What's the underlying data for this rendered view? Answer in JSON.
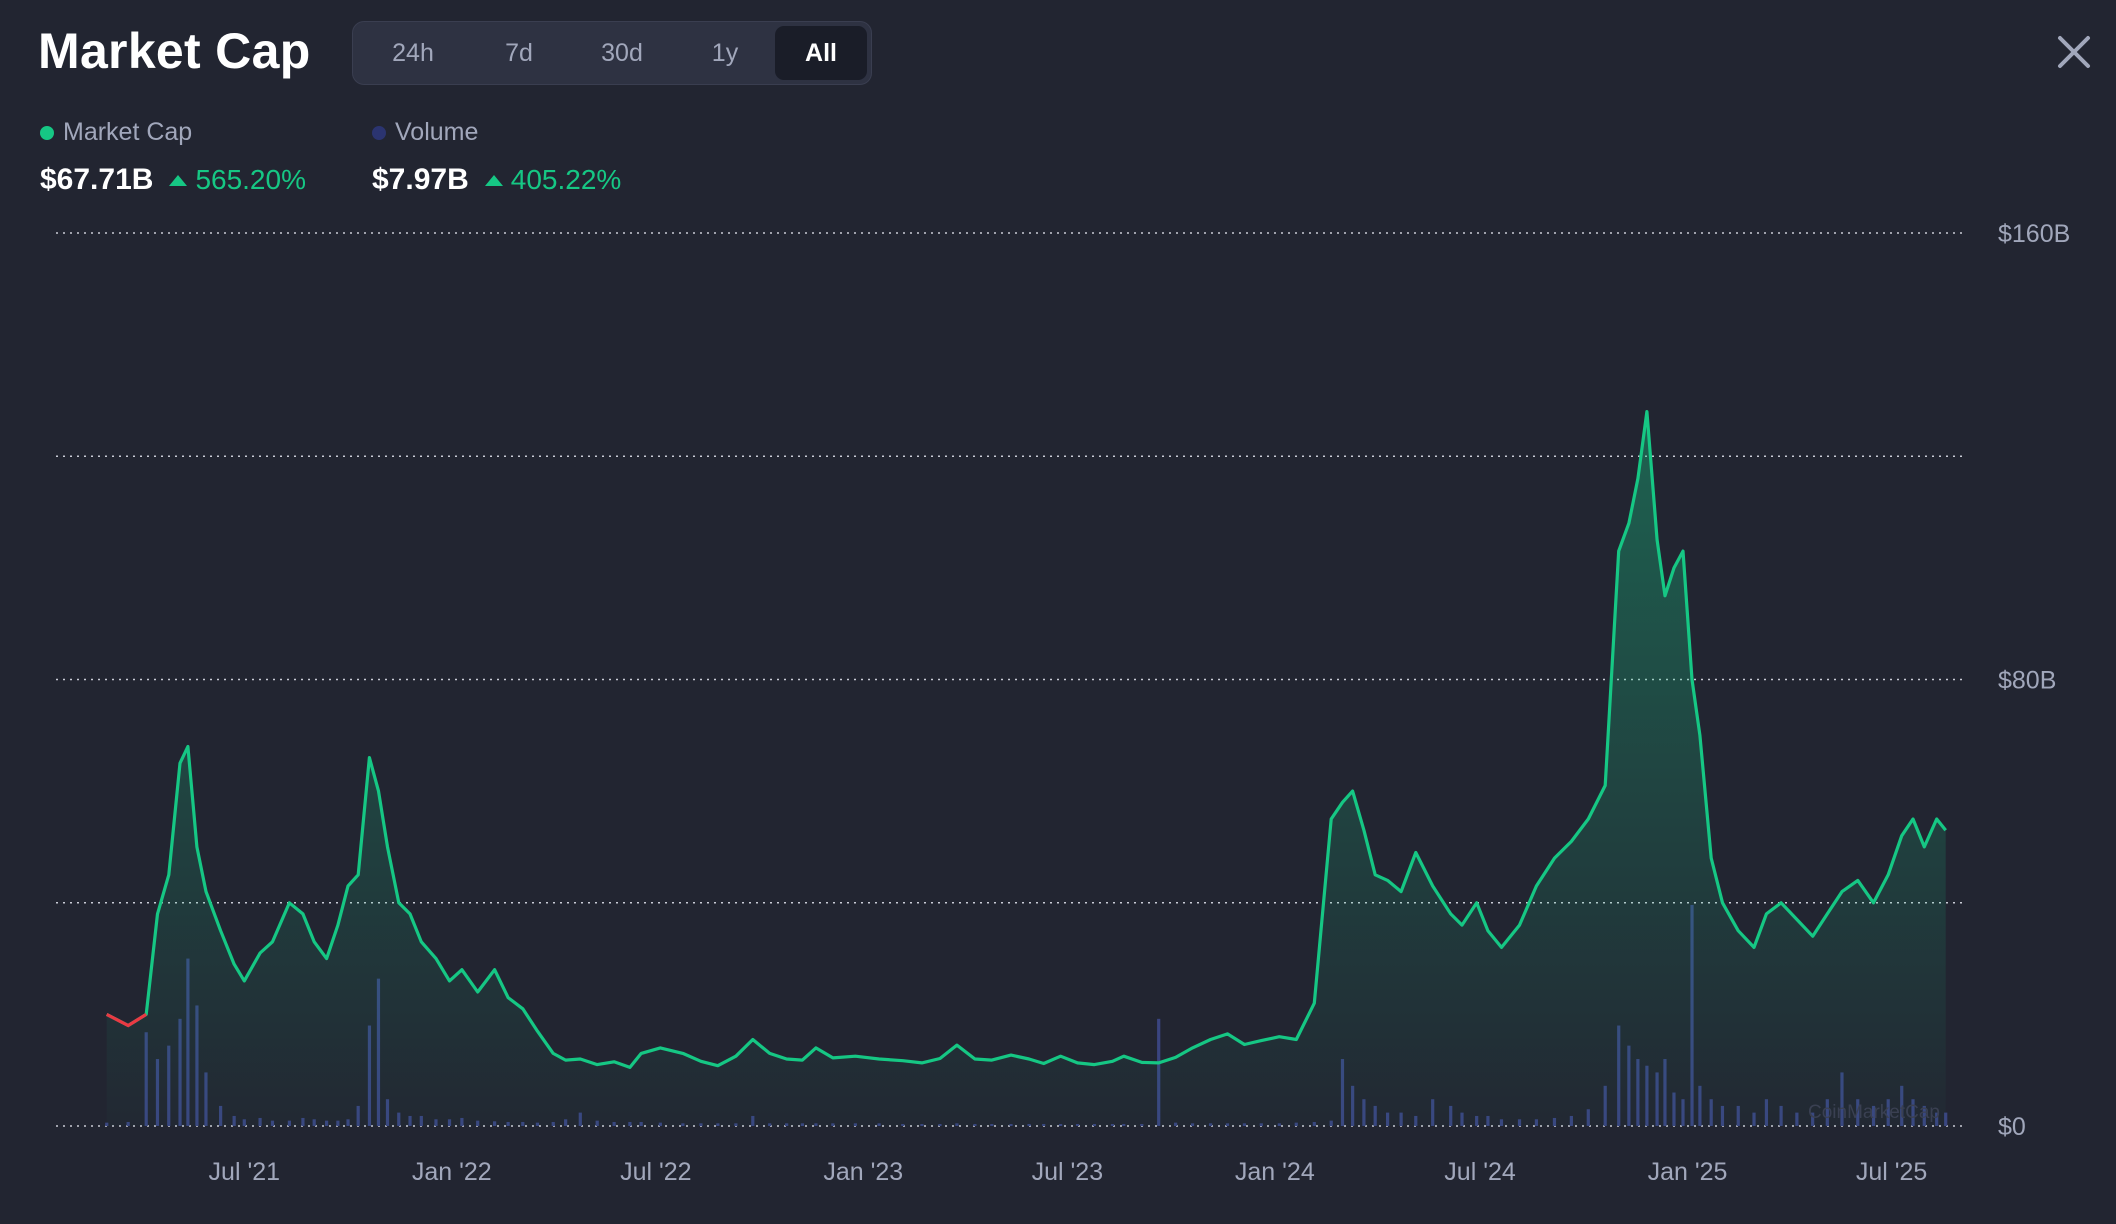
{
  "header": {
    "title": "Market Cap",
    "tabs": [
      {
        "label": "24h",
        "active": false
      },
      {
        "label": "7d",
        "active": false
      },
      {
        "label": "30d",
        "active": false
      },
      {
        "label": "1y",
        "active": false
      },
      {
        "label": "All",
        "active": true
      }
    ],
    "close_icon": "close-icon"
  },
  "legend": {
    "market_cap": {
      "label": "Market Cap",
      "value": "$67.71B",
      "change": "565.20%",
      "color": "#16c784"
    },
    "volume": {
      "label": "Volume",
      "value": "$7.97B",
      "change": "405.22%",
      "color": "#2b3470"
    }
  },
  "colors": {
    "background": "#222531",
    "line": "#16c784",
    "line_down": "#ea3943",
    "grid": "#c9ccd6",
    "volume": "#3a4580",
    "axis_text": "#a1a7bb"
  },
  "watermark": "CoinMarketCap",
  "chart_data": {
    "type": "line",
    "series": [
      {
        "name": "Market Cap",
        "x": [
          "2021-03-01",
          "2021-03-20",
          "2021-04-05",
          "2021-04-15",
          "2021-04-25",
          "2021-05-05",
          "2021-05-12",
          "2021-05-20",
          "2021-05-28",
          "2021-06-10",
          "2021-06-22",
          "2021-07-01",
          "2021-07-15",
          "2021-07-26",
          "2021-08-10",
          "2021-08-22",
          "2021-09-01",
          "2021-09-12",
          "2021-09-22",
          "2021-10-01",
          "2021-10-10",
          "2021-10-20",
          "2021-10-28",
          "2021-11-05",
          "2021-11-15",
          "2021-11-25",
          "2021-12-05",
          "2021-12-18",
          "2021-12-30",
          "2022-01-10",
          "2022-01-24",
          "2022-02-08",
          "2022-02-20",
          "2022-03-05",
          "2022-03-18",
          "2022-04-01",
          "2022-04-12",
          "2022-04-25",
          "2022-05-10",
          "2022-05-25",
          "2022-06-08",
          "2022-06-18",
          "2022-07-05",
          "2022-07-25",
          "2022-08-10",
          "2022-08-25",
          "2022-09-10",
          "2022-09-25",
          "2022-10-10",
          "2022-10-25",
          "2022-11-08",
          "2022-11-20",
          "2022-12-05",
          "2022-12-25",
          "2023-01-15",
          "2023-02-05",
          "2023-02-22",
          "2023-03-10",
          "2023-03-25",
          "2023-04-10",
          "2023-04-25",
          "2023-05-12",
          "2023-05-28",
          "2023-06-10",
          "2023-06-25",
          "2023-07-10",
          "2023-07-25",
          "2023-08-10",
          "2023-08-20",
          "2023-09-05",
          "2023-09-20",
          "2023-10-05",
          "2023-10-20",
          "2023-11-05",
          "2023-11-20",
          "2023-12-05",
          "2023-12-20",
          "2024-01-05",
          "2024-01-20",
          "2024-02-05",
          "2024-02-20",
          "2024-03-01",
          "2024-03-10",
          "2024-03-20",
          "2024-03-30",
          "2024-04-10",
          "2024-04-22",
          "2024-05-05",
          "2024-05-20",
          "2024-06-05",
          "2024-06-15",
          "2024-06-28",
          "2024-07-08",
          "2024-07-20",
          "2024-08-05",
          "2024-08-20",
          "2024-09-05",
          "2024-09-20",
          "2024-10-05",
          "2024-10-20",
          "2024-11-01",
          "2024-11-10",
          "2024-11-18",
          "2024-11-26",
          "2024-12-05",
          "2024-12-12",
          "2024-12-20",
          "2024-12-28",
          "2025-01-05",
          "2025-01-12",
          "2025-01-22",
          "2025-02-01",
          "2025-02-15",
          "2025-03-01",
          "2025-03-12",
          "2025-03-25",
          "2025-04-08",
          "2025-04-22",
          "2025-05-05",
          "2025-05-18",
          "2025-06-01",
          "2025-06-15",
          "2025-06-28",
          "2025-07-10",
          "2025-07-20",
          "2025-07-30",
          "2025-08-10",
          "2025-08-18"
        ],
        "values": [
          20,
          18,
          20,
          38,
          45,
          65,
          68,
          50,
          42,
          35,
          29,
          26,
          31,
          33,
          40,
          38,
          33,
          30,
          36,
          43,
          45,
          66,
          60,
          50,
          40,
          38,
          33,
          30,
          26,
          28,
          24,
          28,
          23,
          21,
          17,
          13,
          11.8,
          12,
          11,
          11.5,
          10.5,
          13,
          14,
          13,
          11.6,
          10.8,
          12.5,
          15.5,
          13,
          12,
          11.8,
          14,
          12.2,
          12.5,
          12,
          11.7,
          11.3,
          12.1,
          14.5,
          12,
          11.8,
          12.7,
          12,
          11.2,
          12.5,
          11.3,
          11,
          11.6,
          12.5,
          11.4,
          11.3,
          12.3,
          14,
          15.5,
          16.5,
          14.6,
          15.3,
          16,
          15.5,
          22,
          55,
          58,
          60,
          53,
          45,
          44,
          42,
          49,
          43,
          38,
          36,
          40,
          35,
          32,
          36,
          43,
          48,
          51,
          55,
          61,
          103,
          108,
          116,
          128,
          105,
          95,
          100,
          103,
          80,
          70,
          48,
          40,
          35,
          32,
          38,
          40,
          37,
          34,
          38,
          42,
          44,
          40,
          45,
          52,
          55,
          50,
          55,
          53
        ]
      },
      {
        "name": "Volume",
        "x": [
          "2021-03-01",
          "2021-03-20",
          "2021-04-05",
          "2021-04-15",
          "2021-04-25",
          "2021-05-05",
          "2021-05-12",
          "2021-05-20",
          "2021-05-28",
          "2021-06-10",
          "2021-06-22",
          "2021-07-01",
          "2021-07-15",
          "2021-07-26",
          "2021-08-10",
          "2021-08-22",
          "2021-09-01",
          "2021-09-12",
          "2021-09-22",
          "2021-10-01",
          "2021-10-10",
          "2021-10-20",
          "2021-10-28",
          "2021-11-05",
          "2021-11-15",
          "2021-11-25",
          "2021-12-05",
          "2021-12-18",
          "2021-12-30",
          "2022-01-10",
          "2022-01-24",
          "2022-02-08",
          "2022-02-20",
          "2022-03-05",
          "2022-03-18",
          "2022-04-01",
          "2022-04-12",
          "2022-04-25",
          "2022-05-10",
          "2022-05-25",
          "2022-06-08",
          "2022-06-18",
          "2022-07-05",
          "2022-07-25",
          "2022-08-10",
          "2022-08-25",
          "2022-09-10",
          "2022-09-25",
          "2022-10-10",
          "2022-10-25",
          "2022-11-08",
          "2022-11-20",
          "2022-12-05",
          "2022-12-25",
          "2023-01-15",
          "2023-02-05",
          "2023-02-22",
          "2023-03-10",
          "2023-03-25",
          "2023-04-10",
          "2023-04-25",
          "2023-05-12",
          "2023-05-28",
          "2023-06-10",
          "2023-06-25",
          "2023-07-10",
          "2023-07-25",
          "2023-08-10",
          "2023-08-20",
          "2023-09-05",
          "2023-09-20",
          "2023-10-05",
          "2023-10-20",
          "2023-11-05",
          "2023-11-20",
          "2023-12-05",
          "2023-12-20",
          "2024-01-05",
          "2024-01-20",
          "2024-02-05",
          "2024-02-20",
          "2024-03-01",
          "2024-03-10",
          "2024-03-20",
          "2024-03-30",
          "2024-04-10",
          "2024-04-22",
          "2024-05-05",
          "2024-05-20",
          "2024-06-05",
          "2024-06-15",
          "2024-06-28",
          "2024-07-08",
          "2024-07-20",
          "2024-08-05",
          "2024-08-20",
          "2024-09-05",
          "2024-09-20",
          "2024-10-05",
          "2024-10-20",
          "2024-11-01",
          "2024-11-10",
          "2024-11-18",
          "2024-11-26",
          "2024-12-05",
          "2024-12-12",
          "2024-12-20",
          "2024-12-28",
          "2025-01-05",
          "2025-01-12",
          "2025-01-22",
          "2025-02-01",
          "2025-02-15",
          "2025-03-01",
          "2025-03-12",
          "2025-03-25",
          "2025-04-08",
          "2025-04-22",
          "2025-05-05",
          "2025-05-18",
          "2025-06-01",
          "2025-06-15",
          "2025-06-28",
          "2025-07-10",
          "2025-07-20",
          "2025-07-30",
          "2025-08-10",
          "2025-08-18"
        ],
        "values": [
          0.5,
          0.6,
          14,
          10,
          12,
          16,
          25,
          18,
          8,
          3,
          1.5,
          1,
          1.2,
          0.8,
          0.8,
          1.2,
          1,
          0.8,
          0.8,
          1,
          3,
          15,
          22,
          4,
          2,
          1.5,
          1.5,
          1,
          1,
          1.2,
          0.8,
          0.7,
          0.6,
          0.6,
          0.5,
          0.6,
          1,
          2,
          0.8,
          0.6,
          0.6,
          0.6,
          0.5,
          0.4,
          0.4,
          0.4,
          0.4,
          1.5,
          0.4,
          0.4,
          0.4,
          0.4,
          0.4,
          0.4,
          0.4,
          0.3,
          0.3,
          0.3,
          0.4,
          0.3,
          0.3,
          0.3,
          0.3,
          0.3,
          0.3,
          0.3,
          0.3,
          0.3,
          0.3,
          0.3,
          16,
          0.5,
          0.4,
          0.4,
          0.4,
          0.4,
          0.4,
          0.4,
          0.5,
          0.6,
          0.8,
          10,
          6,
          4,
          3,
          2,
          2,
          1.5,
          4,
          3,
          2,
          1.5,
          1.5,
          1,
          1,
          1,
          1.2,
          1.5,
          2.5,
          6,
          15,
          12,
          10,
          9,
          8,
          10,
          5,
          4,
          33,
          6,
          4,
          3,
          3,
          2,
          4,
          3,
          2,
          2,
          4,
          8,
          4,
          3,
          4,
          6,
          4,
          3,
          2,
          2
        ]
      }
    ],
    "x_ticks": [
      "Jul '21",
      "Jan '22",
      "Jul '22",
      "Jan '23",
      "Jul '23",
      "Jan '24",
      "Jul '24",
      "Jan '25",
      "Jul '25"
    ],
    "x_tick_dates": [
      "2021-07-01",
      "2022-01-01",
      "2022-07-01",
      "2023-01-01",
      "2023-07-01",
      "2024-01-01",
      "2024-07-01",
      "2025-01-01",
      "2025-07-01"
    ],
    "y_ticks": [
      "$160B",
      "$80B",
      "$0"
    ],
    "y_tick_values": [
      160,
      80,
      0
    ],
    "ylim": [
      0,
      160
    ],
    "xlim": [
      "2021-01-15",
      "2025-09-05"
    ],
    "unit": "B USD",
    "grid": true,
    "grid_lines": [
      0,
      40,
      80,
      120,
      160
    ],
    "legend": "top-left"
  }
}
